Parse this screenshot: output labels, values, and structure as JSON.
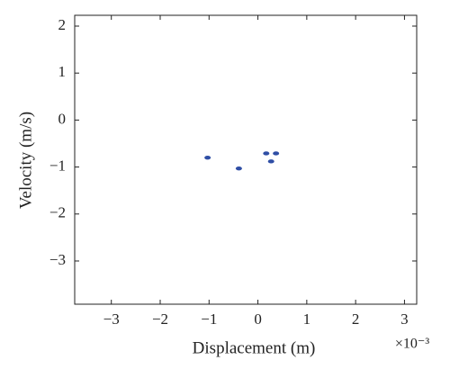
{
  "chart_data": {
    "type": "scatter",
    "x_label": "Displacement (m)",
    "y_label": "Velocity (m/s)",
    "x_multiplier": "×10⁻³",
    "color": "#2f4ea5",
    "x": [
      -1.03,
      -0.39,
      0.17,
      0.27,
      0.37
    ],
    "values": [
      -0.8,
      -1.03,
      -0.71,
      -0.88,
      -0.71
    ],
    "xlim": [
      -3.75,
      3.25
    ],
    "ylim": [
      -3.92,
      2.23
    ],
    "xticks": [
      {
        "value": -3,
        "label": "−3"
      },
      {
        "value": -2,
        "label": "−2"
      },
      {
        "value": -1,
        "label": "−1"
      },
      0,
      1,
      2,
      3
    ],
    "yticks": [
      {
        "value": -3,
        "label": "−3"
      },
      {
        "value": -2,
        "label": "−2"
      },
      {
        "value": -1,
        "label": "−1"
      },
      0,
      1,
      2
    ],
    "grid": false
  }
}
